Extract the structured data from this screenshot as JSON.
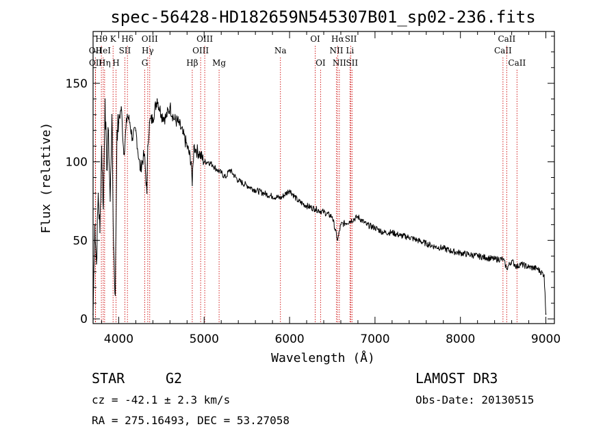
{
  "chart_data": {
    "type": "line",
    "title": "spec-56428-HD182659N545307B01_sp02-236.fits",
    "xlabel": "Wavelength (Å)",
    "ylabel": "Flux (relative)",
    "xlim": [
      3700,
      9100
    ],
    "ylim": [
      -3,
      183
    ],
    "xticks": [
      4000,
      5000,
      6000,
      7000,
      8000,
      9000
    ],
    "yticks": [
      0,
      50,
      100,
      150
    ],
    "series": [
      {
        "name": "spectrum",
        "x": [
          3700,
          3720,
          3740,
          3760,
          3780,
          3800,
          3820,
          3840,
          3860,
          3880,
          3900,
          3920,
          3940,
          3960,
          3980,
          4000,
          4030,
          4060,
          4100,
          4130,
          4160,
          4200,
          4250,
          4300,
          4330,
          4340,
          4360,
          4400,
          4450,
          4500,
          4550,
          4600,
          4650,
          4700,
          4750,
          4800,
          4850,
          4861,
          4880,
          4900,
          4950,
          5000,
          5050,
          5100,
          5150,
          5200,
          5250,
          5300,
          5400,
          5500,
          5600,
          5700,
          5800,
          5900,
          6000,
          6100,
          6200,
          6300,
          6400,
          6500,
          6563,
          6600,
          6700,
          6800,
          6900,
          7000,
          7100,
          7200,
          7300,
          7400,
          7500,
          7600,
          7700,
          7800,
          7900,
          8000,
          8100,
          8200,
          8300,
          8400,
          8500,
          8542,
          8600,
          8662,
          8700,
          8800,
          8900,
          8980,
          9000
        ],
        "y": [
          3,
          60,
          35,
          80,
          55,
          110,
          70,
          140,
          95,
          120,
          75,
          130,
          45,
          15,
          120,
          125,
          135,
          105,
          130,
          125,
          115,
          120,
          95,
          105,
          80,
          110,
          125,
          128,
          140,
          130,
          128,
          135,
          127,
          125,
          118,
          110,
          100,
          85,
          110,
          108,
          105,
          100,
          100,
          98,
          95,
          93,
          90,
          95,
          88,
          85,
          82,
          80,
          78,
          77,
          82,
          75,
          72,
          70,
          68,
          65,
          50,
          60,
          62,
          65,
          60,
          58,
          55,
          55,
          53,
          52,
          50,
          48,
          46,
          45,
          43,
          42,
          41,
          40,
          39,
          38,
          38,
          32,
          37,
          33,
          35,
          33,
          32,
          28,
          3
        ]
      }
    ],
    "spectral_lines": [
      {
        "label": "OII",
        "wavelength": 3727,
        "row": 2
      },
      {
        "label": "OII",
        "wavelength": 3729,
        "row": 3
      },
      {
        "label": "Hθ",
        "wavelength": 3797,
        "row": 1
      },
      {
        "label": "HeI",
        "wavelength": 3819,
        "row": 2
      },
      {
        "label": "Hη",
        "wavelength": 3835,
        "row": 3
      },
      {
        "label": "K",
        "wavelength": 3934,
        "row": 1
      },
      {
        "label": "H",
        "wavelength": 3968,
        "row": 3
      },
      {
        "label": "SII",
        "wavelength": 4072,
        "row": 2
      },
      {
        "label": "Hδ",
        "wavelength": 4102,
        "row": 1
      },
      {
        "label": "G",
        "wavelength": 4305,
        "row": 3
      },
      {
        "label": "Hγ",
        "wavelength": 4340,
        "row": 2
      },
      {
        "label": "OIII",
        "wavelength": 4363,
        "row": 1
      },
      {
        "label": "Hβ",
        "wavelength": 4861,
        "row": 3
      },
      {
        "label": "OIII",
        "wavelength": 4959,
        "row": 2
      },
      {
        "label": "OIII",
        "wavelength": 5007,
        "row": 1
      },
      {
        "label": "Mg",
        "wavelength": 5175,
        "row": 3
      },
      {
        "label": "Na",
        "wavelength": 5893,
        "row": 2
      },
      {
        "label": "OI",
        "wavelength": 6300,
        "row": 1
      },
      {
        "label": "OI",
        "wavelength": 6363,
        "row": 3
      },
      {
        "label": "NII",
        "wavelength": 6548,
        "row": 2
      },
      {
        "label": "Hα",
        "wavelength": 6563,
        "row": 1
      },
      {
        "label": "NII",
        "wavelength": 6583,
        "row": 3
      },
      {
        "label": "Li",
        "wavelength": 6707,
        "row": 2
      },
      {
        "label": "SII",
        "wavelength": 6717,
        "row": 1
      },
      {
        "label": "SII",
        "wavelength": 6731,
        "row": 3
      },
      {
        "label": "CaII",
        "wavelength": 8498,
        "row": 2
      },
      {
        "label": "CaII",
        "wavelength": 8542,
        "row": 1
      },
      {
        "label": "CaII",
        "wavelength": 8662,
        "row": 3
      }
    ]
  },
  "info": {
    "object_type": "STAR",
    "subclass": "G2",
    "cz": "cz = -42.1 ± 2.3 km/s",
    "coords": "RA = 275.16493, DEC =  53.27058",
    "survey": "LAMOST DR3",
    "obs_date": "Obs-Date: 20130515"
  },
  "colors": {
    "line_marker": "#cc0000",
    "spectrum": "#000000"
  }
}
